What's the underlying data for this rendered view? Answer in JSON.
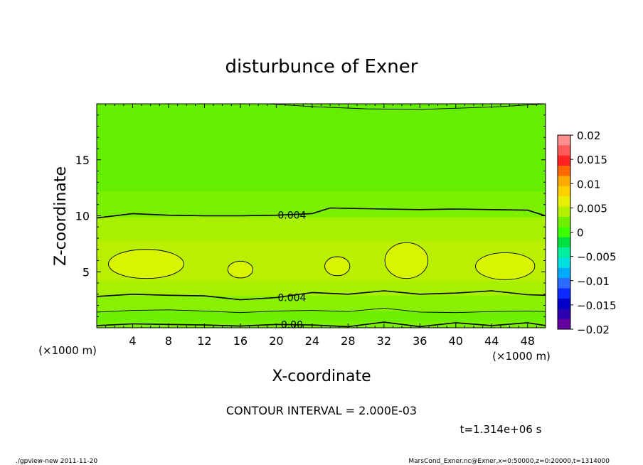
{
  "chart_data": {
    "type": "heatmap",
    "title": "disturbunce of Exner",
    "xlabel": "X-coordinate",
    "ylabel": "Z-coordinate",
    "x_unit": "(×1000 m)",
    "y_unit": "(×1000 m)",
    "xlim": [
      0,
      50
    ],
    "ylim": [
      0,
      20
    ],
    "x_ticks": [
      "4",
      "8",
      "12",
      "16",
      "20",
      "24",
      "28",
      "32",
      "36",
      "40",
      "44",
      "48"
    ],
    "y_ticks": [
      "5",
      "10",
      "15"
    ],
    "colorbar": {
      "ticks": [
        "0.02",
        "0.015",
        "0.01",
        "0.005",
        "0",
        "−0.005",
        "−0.01",
        "−0.015",
        "−0.02"
      ],
      "colors": [
        "#ff8e8e",
        "#ff5a5a",
        "#ff2020",
        "#ff6a00",
        "#ffaa00",
        "#ffd000",
        "#e6f000",
        "#b4f000",
        "#6ff000",
        "#3cff00",
        "#00e040",
        "#00f0a0",
        "#00e0e0",
        "#00aaff",
        "#2a6aff",
        "#0a2aff",
        "#0000c8",
        "#2a00b0",
        "#6400a0"
      ]
    },
    "bands": [
      {
        "z": [
          0.0,
          0.6
        ],
        "value": 0.002,
        "color": "#7af000"
      },
      {
        "z": [
          0.6,
          1.5
        ],
        "value": 0.002,
        "color": "#6cf000"
      },
      {
        "z": [
          1.5,
          2.9
        ],
        "value": 0.003,
        "color": "#88f000"
      },
      {
        "z": [
          2.9,
          4.2
        ],
        "value": 0.004,
        "color": "#a6f000"
      },
      {
        "z": [
          4.2,
          7.8
        ],
        "value": 0.005,
        "color": "#b8f000"
      },
      {
        "z": [
          7.8,
          9.9
        ],
        "value": 0.004,
        "color": "#a6f000"
      },
      {
        "z": [
          9.9,
          12.2
        ],
        "value": 0.003,
        "color": "#7af000"
      },
      {
        "z": [
          12.2,
          20.0
        ],
        "value": 0.002,
        "color": "#66ee00"
      }
    ],
    "contours": [
      {
        "label": "0.00",
        "points": [
          [
            0,
            0.2
          ],
          [
            4,
            0.35
          ],
          [
            8,
            0.3
          ],
          [
            12,
            0.25
          ],
          [
            16,
            0.15
          ],
          [
            20,
            0.3
          ],
          [
            24,
            0.25
          ],
          [
            28,
            0.1
          ],
          [
            32,
            0.5
          ],
          [
            36,
            0.1
          ],
          [
            40,
            0.45
          ],
          [
            44,
            0.2
          ],
          [
            48,
            0.45
          ],
          [
            50,
            0.2
          ]
        ]
      },
      {
        "label": "",
        "points": [
          [
            0,
            1.4
          ],
          [
            4,
            1.55
          ],
          [
            8,
            1.6
          ],
          [
            12,
            1.5
          ],
          [
            16,
            1.35
          ],
          [
            20,
            1.5
          ],
          [
            24,
            1.55
          ],
          [
            28,
            1.45
          ],
          [
            32,
            1.75
          ],
          [
            36,
            1.4
          ],
          [
            40,
            1.35
          ],
          [
            44,
            1.45
          ],
          [
            48,
            1.5
          ],
          [
            50,
            1.45
          ]
        ]
      },
      {
        "label": "0.004",
        "points": [
          [
            0,
            2.8
          ],
          [
            4,
            3.0
          ],
          [
            8,
            2.9
          ],
          [
            12,
            2.85
          ],
          [
            16,
            2.5
          ],
          [
            20,
            2.7
          ],
          [
            24,
            3.15
          ],
          [
            28,
            3.0
          ],
          [
            32,
            3.3
          ],
          [
            36,
            3.0
          ],
          [
            40,
            3.1
          ],
          [
            44,
            3.3
          ],
          [
            48,
            2.95
          ],
          [
            50,
            2.9
          ]
        ]
      },
      {
        "label": "0.004",
        "points": [
          [
            0,
            9.8
          ],
          [
            4,
            10.2
          ],
          [
            8,
            10.05
          ],
          [
            12,
            10.0
          ],
          [
            16,
            10.0
          ],
          [
            20,
            10.05
          ],
          [
            24,
            10.2
          ],
          [
            26,
            10.7
          ],
          [
            32,
            10.6
          ],
          [
            36,
            10.55
          ],
          [
            40,
            10.6
          ],
          [
            44,
            10.55
          ],
          [
            48,
            10.5
          ],
          [
            50,
            10.0
          ]
        ]
      },
      {
        "label": "",
        "points": [
          [
            19,
            20.0
          ],
          [
            24,
            19.75
          ],
          [
            30,
            19.55
          ],
          [
            36,
            19.5
          ],
          [
            40,
            19.6
          ],
          [
            45,
            19.75
          ],
          [
            50,
            20.0
          ]
        ]
      }
    ],
    "closed_contours": [
      {
        "center": [
          5.5,
          5.7
        ],
        "radius": [
          4.2,
          1.3
        ]
      },
      {
        "center": [
          16,
          5.2
        ],
        "radius": [
          1.4,
          0.75
        ]
      },
      {
        "center": [
          26.8,
          5.5
        ],
        "radius": [
          1.4,
          0.85
        ]
      },
      {
        "center": [
          34.5,
          6.0
        ],
        "radius": [
          2.4,
          1.6
        ]
      },
      {
        "center": [
          45.5,
          5.5
        ],
        "radius": [
          3.3,
          1.2
        ]
      }
    ]
  },
  "footer": {
    "contour_interval": "CONTOUR INTERVAL = 2.000E-03",
    "time": "t=1.314e+06 s",
    "program": "./gpview-new  2011-11-20",
    "source": "MarsCond_Exner.nc@Exner,x=0:50000,z=0:20000,t=1314000"
  }
}
